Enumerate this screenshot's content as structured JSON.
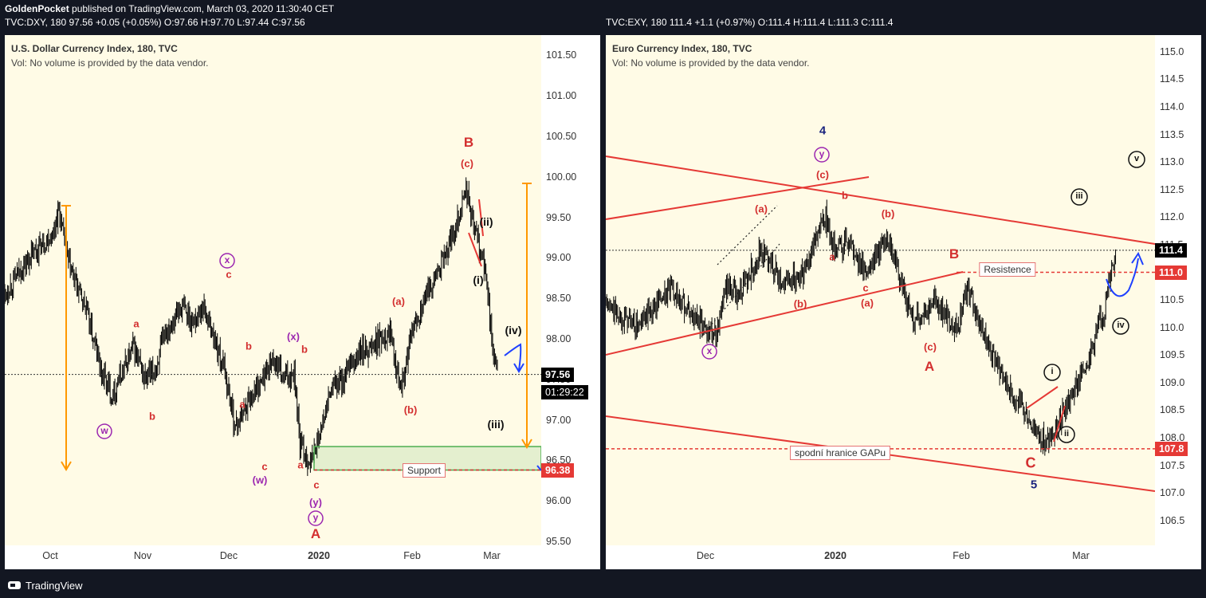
{
  "header": {
    "publisher": "GoldenPocket",
    "published_text": " published on TradingView.com, March 03, 2020 11:30:40 CET",
    "left_quote": "TVC:DXY, 180  97.56  +0.05 (+0.05%)  O:97.66  H:97.70  L:97.44  C:97.56",
    "right_quote": "TVC:EXY, 180  111.4  +1.1 (+0.97%)  O:111.4  H:111.4  L:111.3  C:111.4"
  },
  "footer": {
    "brand": "TradingView"
  },
  "colors": {
    "up_down": "#000000",
    "wave": "#d32f2f",
    "purple": "#9c27b0",
    "orange": "#ff9800",
    "blue": "#1e40ff",
    "green": "#4caf50"
  },
  "chart_data": [
    {
      "type": "candlestick",
      "title": "U.S. Dollar Currency Index, 180, TVC",
      "subtitle": "Vol: No volume is provided by the data vendor.",
      "yticks": [
        "101.50",
        "101.00",
        "100.50",
        "100.00",
        "99.50",
        "99.00",
        "98.50",
        "98.00",
        "97.50",
        "97.00",
        "96.50",
        "96.00",
        "95.50"
      ],
      "ytick_values": [
        101.5,
        101.0,
        100.5,
        100.0,
        99.5,
        99.0,
        98.5,
        98.0,
        97.5,
        97.0,
        96.5,
        96.0,
        95.5
      ],
      "ylim": [
        95.45,
        101.75
      ],
      "xticks": [
        "Oct",
        "Nov",
        "Dec",
        "2020",
        "Feb",
        "Mar"
      ],
      "last_price": "97.56",
      "countdown": "01:29:22",
      "support_price": "96.38",
      "series_points": [
        [
          0,
          98.55
        ],
        [
          0.03,
          98.85
        ],
        [
          0.06,
          99.1
        ],
        [
          0.09,
          99.3
        ],
        [
          0.1,
          99.6
        ],
        [
          0.12,
          98.9
        ],
        [
          0.15,
          98.4
        ],
        [
          0.18,
          97.6
        ],
        [
          0.2,
          97.3
        ],
        [
          0.22,
          97.6
        ],
        [
          0.24,
          97.9
        ],
        [
          0.26,
          97.5
        ],
        [
          0.28,
          97.6
        ],
        [
          0.3,
          98.1
        ],
        [
          0.33,
          98.4
        ],
        [
          0.35,
          98.2
        ],
        [
          0.37,
          98.4
        ],
        [
          0.39,
          98.0
        ],
        [
          0.41,
          97.6
        ],
        [
          0.43,
          96.9
        ],
        [
          0.45,
          97.2
        ],
        [
          0.48,
          97.5
        ],
        [
          0.5,
          97.75
        ],
        [
          0.52,
          97.5
        ],
        [
          0.54,
          97.6
        ],
        [
          0.55,
          96.7
        ],
        [
          0.57,
          96.45
        ],
        [
          0.59,
          96.9
        ],
        [
          0.61,
          97.4
        ],
        [
          0.63,
          97.5
        ],
        [
          0.66,
          97.8
        ],
        [
          0.68,
          97.9
        ],
        [
          0.7,
          98.0
        ],
        [
          0.72,
          98.1
        ],
        [
          0.73,
          97.7
        ],
        [
          0.74,
          97.4
        ],
        [
          0.76,
          98.1
        ],
        [
          0.79,
          98.6
        ],
        [
          0.82,
          99.0
        ],
        [
          0.84,
          99.4
        ],
        [
          0.86,
          99.85
        ],
        [
          0.87,
          99.5
        ],
        [
          0.89,
          99.0
        ],
        [
          0.9,
          98.6
        ],
        [
          0.91,
          97.8
        ],
        [
          0.92,
          97.55
        ]
      ],
      "annotations": {
        "B": "B",
        "c_top": "(c)",
        "ii": "(ii)",
        "i": "(i)",
        "a_paren": "(a)",
        "b_paren": "(b)",
        "iv": "(iv)",
        "iii": "(iii)",
        "x_circle": "x",
        "c1": "c",
        "a1": "a",
        "b1": "b",
        "w_circle": "w",
        "b2": "b",
        "x_paren": "(x)",
        "b3": "b",
        "a2": "a",
        "c2": "c",
        "w_paren": "(w)",
        "a3": "a",
        "c3": "c",
        "y_paren": "(y)",
        "y_circle": "y",
        "A": "A",
        "support": "Support"
      }
    },
    {
      "type": "candlestick",
      "title": "Euro Currency Index, 180, TVC",
      "subtitle": "Vol: No volume is provided by the data vendor.",
      "yticks": [
        "115.0",
        "114.5",
        "114.0",
        "113.5",
        "113.0",
        "112.5",
        "112.0",
        "111.5",
        "111.0",
        "110.5",
        "110.0",
        "109.5",
        "109.0",
        "108.5",
        "108.0",
        "107.5",
        "107.0",
        "106.5"
      ],
      "ytick_values": [
        115.0,
        114.5,
        114.0,
        113.5,
        113.0,
        112.5,
        112.0,
        111.5,
        111.0,
        110.5,
        110.0,
        109.5,
        109.0,
        108.5,
        108.0,
        107.5,
        107.0,
        106.5
      ],
      "ylim": [
        106.05,
        115.3
      ],
      "xticks": [
        "Dec",
        "2020",
        "Feb",
        "Mar"
      ],
      "last_price": "111.4",
      "resistance_price": "111.0",
      "gap_price": "107.8",
      "series_points": [
        [
          0,
          110.4
        ],
        [
          0.03,
          110.2
        ],
        [
          0.06,
          110.0
        ],
        [
          0.09,
          110.4
        ],
        [
          0.12,
          110.7
        ],
        [
          0.15,
          110.3
        ],
        [
          0.18,
          110.0
        ],
        [
          0.2,
          109.9
        ],
        [
          0.22,
          110.7
        ],
        [
          0.24,
          110.6
        ],
        [
          0.26,
          110.9
        ],
        [
          0.28,
          111.4
        ],
        [
          0.3,
          111.2
        ],
        [
          0.32,
          110.8
        ],
        [
          0.34,
          110.9
        ],
        [
          0.36,
          111.0
        ],
        [
          0.38,
          111.6
        ],
        [
          0.4,
          112.0
        ],
        [
          0.42,
          111.3
        ],
        [
          0.44,
          111.6
        ],
        [
          0.46,
          111.2
        ],
        [
          0.48,
          111.0
        ],
        [
          0.5,
          111.5
        ],
        [
          0.52,
          111.4
        ],
        [
          0.54,
          110.7
        ],
        [
          0.56,
          110.1
        ],
        [
          0.58,
          110.3
        ],
        [
          0.6,
          110.5
        ],
        [
          0.62,
          110.2
        ],
        [
          0.64,
          110.0
        ],
        [
          0.66,
          110.7
        ],
        [
          0.68,
          110.1
        ],
        [
          0.7,
          109.6
        ],
        [
          0.72,
          109.2
        ],
        [
          0.74,
          108.8
        ],
        [
          0.76,
          108.5
        ],
        [
          0.78,
          108.2
        ],
        [
          0.8,
          107.9
        ],
        [
          0.82,
          108.1
        ],
        [
          0.84,
          108.6
        ],
        [
          0.86,
          109.0
        ],
        [
          0.88,
          109.5
        ],
        [
          0.9,
          110.1
        ],
        [
          0.91,
          110.4
        ],
        [
          0.92,
          111.1
        ],
        [
          0.93,
          111.4
        ]
      ],
      "annotations": {
        "four": "4",
        "y_circle": "y",
        "c_paren": "(c)",
        "b1": "b",
        "a_paren": "(a)",
        "b_paren": "(b)",
        "a1": "a",
        "c1": "c",
        "a_paren2": "(a)",
        "b_paren2": "(b)",
        "B": "B",
        "c_paren2": "(c)",
        "A": "A",
        "x_circle": "x",
        "C": "C",
        "five": "5",
        "i": "i",
        "ii": "ii",
        "iii": "iii",
        "iv": "iv",
        "v": "v",
        "resistance": "Resistence",
        "gap": "spodní hranice GAPu"
      }
    }
  ]
}
